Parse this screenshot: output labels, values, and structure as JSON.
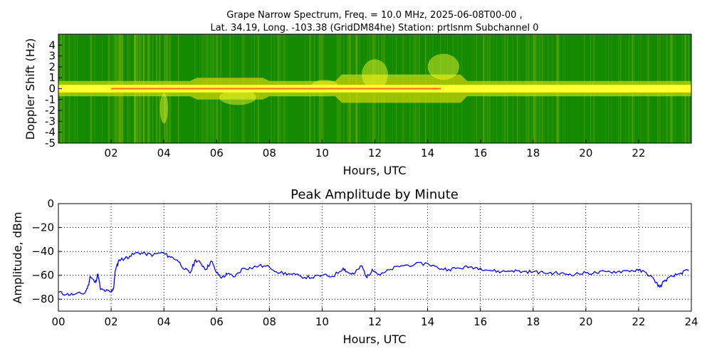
{
  "chart_data": [
    {
      "type": "heatmap",
      "title_line1": "Grape Narrow Spectrum, Freq. = 10.0 MHz, 2025-06-08T00-00 ,",
      "title_line2": "Lat.  34.19, Long. -103.38 (GridDM84he) Station: prtlsnm Subchannel 0",
      "xlabel": "Hours, UTC",
      "ylabel": "Doppler Shift (Hz)",
      "xlim": [
        0,
        24
      ],
      "ylim": [
        -5,
        5
      ],
      "x_tick_labels": [
        "02",
        "04",
        "06",
        "08",
        "10",
        "12",
        "14",
        "16",
        "18",
        "20",
        "22"
      ],
      "x_tick_values": [
        2,
        4,
        6,
        8,
        10,
        12,
        14,
        16,
        18,
        20,
        22
      ],
      "y_tick_labels": [
        "4",
        "3",
        "2",
        "1",
        "0",
        "-1",
        "-2",
        "-3",
        "-4",
        "-5"
      ],
      "y_tick_values": [
        4,
        3,
        2,
        1,
        0,
        -1,
        -2,
        -3,
        -4,
        -5
      ],
      "colors": {
        "background": "#138a00",
        "mid": "#c8d400",
        "high": "#ffff30",
        "peak": "#ff3a10"
      },
      "carrier_doppler_hz": 0
    },
    {
      "type": "line",
      "title": "Peak Amplitude by Minute",
      "xlabel": "Hours, UTC",
      "ylabel": "Amplitude, dBm",
      "xlim": [
        0,
        24
      ],
      "ylim": [
        -90,
        0
      ],
      "grid": true,
      "x_tick_labels": [
        "00",
        "02",
        "04",
        "06",
        "08",
        "10",
        "12",
        "14",
        "16",
        "18",
        "20",
        "22",
        "24"
      ],
      "x_tick_values": [
        0,
        2,
        4,
        6,
        8,
        10,
        12,
        14,
        16,
        18,
        20,
        22,
        24
      ],
      "y_tick_labels": [
        "0",
        "−20",
        "−40",
        "−60",
        "−80"
      ],
      "y_tick_values": [
        0,
        -20,
        -40,
        -60,
        -80
      ],
      "line_color": "#0000ff",
      "series": [
        {
          "x": [
            0,
            0.3,
            0.6,
            1.0,
            1.15,
            1.2,
            1.4,
            1.5,
            1.6,
            1.8,
            2.0,
            2.1,
            2.15,
            2.3,
            2.5,
            2.7,
            3.0,
            3.3,
            3.6,
            3.9,
            4.2,
            4.5,
            4.8,
            5.0,
            5.2,
            5.4,
            5.6,
            5.8,
            6.0,
            6.2,
            6.4,
            6.7,
            7.0,
            7.3,
            7.6,
            8.0,
            8.4,
            8.8,
            9.2,
            9.6,
            10.0,
            10.4,
            10.8,
            11.0,
            11.2,
            11.5,
            11.7,
            11.9,
            12.2,
            12.6,
            13.0,
            13.5,
            14.0,
            14.4,
            14.8,
            15.2,
            15.6,
            16.0,
            16.4,
            16.8,
            17.2,
            17.6,
            18.0,
            18.4,
            18.8,
            19.2,
            19.6,
            20.0,
            20.4,
            20.8,
            21.2,
            21.6,
            22.0,
            22.3,
            22.6,
            22.8,
            23.0,
            23.3,
            23.6,
            23.9
          ],
          "y": [
            -74,
            -76,
            -76,
            -75,
            -68,
            -61,
            -66,
            -59,
            -72,
            -73,
            -74,
            -70,
            -57,
            -47,
            -46,
            -44,
            -41,
            -42,
            -43,
            -41,
            -44,
            -47,
            -55,
            -58,
            -47,
            -50,
            -55,
            -48,
            -58,
            -62,
            -59,
            -61,
            -54,
            -54,
            -52,
            -53,
            -58,
            -59,
            -61,
            -62,
            -60,
            -61,
            -54,
            -58,
            -59,
            -52,
            -62,
            -55,
            -60,
            -55,
            -52,
            -51,
            -50,
            -54,
            -55,
            -54,
            -53,
            -54,
            -56,
            -57,
            -56,
            -57,
            -57,
            -58,
            -58,
            -59,
            -59,
            -58,
            -58,
            -57,
            -57,
            -56,
            -56,
            -58,
            -64,
            -70,
            -64,
            -61,
            -58,
            -56
          ]
        }
      ]
    }
  ]
}
